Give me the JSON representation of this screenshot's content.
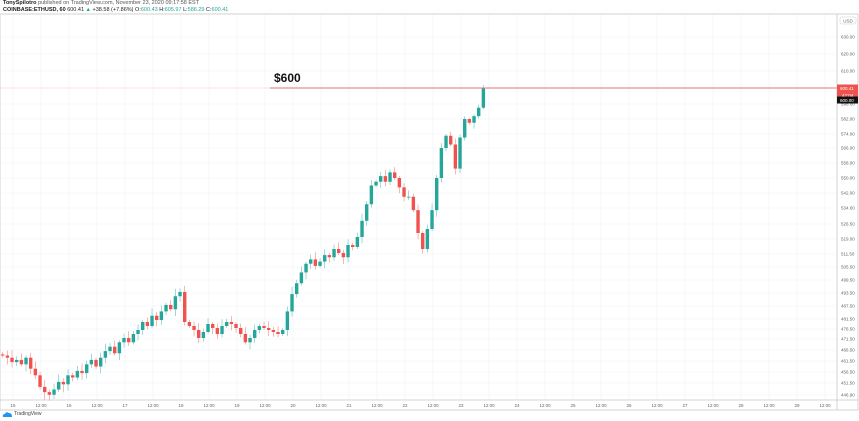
{
  "header": {
    "author": "TonySpilotro",
    "published": "published on TradingView.com, November 23, 2020 09:17:58 EST",
    "symbol": "COINBASE:ETHUSD, 60",
    "last": "600.41",
    "change_arrow": "▲",
    "change": "+38.58 (+7.86%)",
    "o_label": "O:",
    "o": "600.43",
    "h_label": "H:",
    "h": "605.97",
    "l_label": "L:",
    "l": "586.29",
    "c_label": "C:",
    "c": "600.41"
  },
  "annotation": {
    "text": "$600",
    "price": 600.41,
    "color": "#e57373"
  },
  "price_axis": {
    "currency": "USD",
    "last_price_label": "600.41",
    "countdown": "42:04",
    "crosshair_label": "600.00"
  },
  "footer": {
    "brand": "TradingView"
  },
  "colors": {
    "up": "#26a69a",
    "down": "#ef5350",
    "grid": "#eef2f7"
  },
  "chart_data": {
    "type": "candlestick",
    "interval": "60",
    "series_note_closes_every": "2h",
    "scale": "log",
    "grid": true,
    "yticks": [
      "630.00",
      "620.00",
      "610.00",
      "598.00",
      "582.00",
      "574.00",
      "566.00",
      "558.00",
      "550.00",
      "542.00",
      "534.00",
      "526.50",
      "519.00",
      "511.50",
      "505.50",
      "499.50",
      "493.50",
      "487.50",
      "481.50",
      "476.50",
      "471.50",
      "466.50",
      "461.50",
      "456.50",
      "451.50",
      "446.90"
    ],
    "xticks": [
      "15",
      "12:00",
      "16",
      "12:00",
      "17",
      "12:00",
      "18",
      "12:00",
      "19",
      "12:00",
      "20",
      "12:00",
      "21",
      "12:00",
      "22",
      "12:00",
      "23",
      "12:00",
      "24",
      "12:00",
      "25",
      "12:00",
      "26",
      "12:00",
      "27",
      "12:00",
      "28",
      "12:00",
      "29",
      "12:00"
    ],
    "closes": [
      464,
      463,
      461,
      462,
      460,
      463,
      458,
      455,
      450,
      448,
      447,
      449,
      452,
      451,
      455,
      454,
      457,
      456,
      460,
      462,
      459,
      463,
      466,
      468,
      465,
      470,
      472,
      470,
      474,
      476,
      480,
      478,
      483,
      481,
      485,
      488,
      486,
      492,
      494,
      480,
      478,
      476,
      472,
      475,
      479,
      477,
      474,
      478,
      480,
      479,
      477,
      474,
      470,
      472,
      476,
      478,
      477,
      476,
      475,
      474,
      476,
      485,
      493,
      498,
      503,
      507,
      509,
      506,
      508,
      511,
      510,
      514,
      512,
      510,
      516,
      515,
      520,
      528,
      536,
      546,
      548,
      551,
      548,
      553,
      550,
      545,
      540,
      540,
      533,
      522,
      514,
      524,
      533,
      550,
      566,
      573,
      568,
      555,
      572,
      582,
      580,
      585,
      594,
      600.41
    ]
  }
}
